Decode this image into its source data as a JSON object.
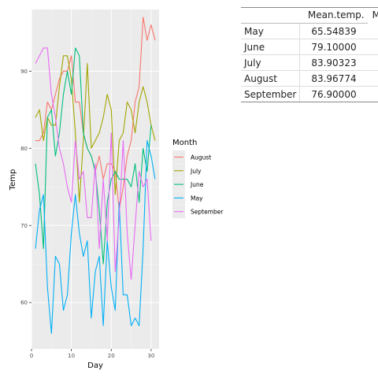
{
  "chart_data": {
    "type": "line",
    "xlabel": "Day",
    "ylabel": "Temp",
    "xlim": [
      0,
      32
    ],
    "ylim": [
      54,
      98
    ],
    "xticks": [
      0,
      10,
      20,
      30
    ],
    "yticks": [
      60,
      70,
      80,
      90
    ],
    "grid": true,
    "legend": {
      "title": "Month",
      "placement": "right"
    },
    "series": [
      {
        "name": "August",
        "color": "#F8766D",
        "x": [
          1,
          2,
          3,
          4,
          5,
          6,
          7,
          8,
          9,
          10,
          11,
          12,
          13,
          14,
          15,
          16,
          17,
          18,
          19,
          20,
          21,
          22,
          23,
          24,
          25,
          26,
          27,
          28,
          29,
          30,
          31
        ],
        "values": [
          81,
          81,
          82,
          86,
          85,
          87,
          89,
          90,
          90,
          92,
          86,
          86,
          82,
          80,
          79,
          77,
          79,
          76,
          78,
          78,
          77,
          72,
          75,
          79,
          81,
          86,
          88,
          97,
          94,
          96,
          94
        ]
      },
      {
        "name": "July",
        "color": "#A3A500",
        "x": [
          1,
          2,
          3,
          4,
          5,
          6,
          7,
          8,
          9,
          10,
          11,
          12,
          13,
          14,
          15,
          16,
          17,
          18,
          19,
          20,
          21,
          22,
          23,
          24,
          25,
          26,
          27,
          28,
          29,
          30,
          31
        ],
        "values": [
          84,
          85,
          81,
          84,
          83,
          83,
          88,
          92,
          92,
          89,
          82,
          73,
          81,
          91,
          80,
          81,
          82,
          84,
          87,
          85,
          74,
          81,
          82,
          86,
          85,
          82,
          86,
          88,
          86,
          83,
          81
        ]
      },
      {
        "name": "June",
        "color": "#00BF7D",
        "x": [
          1,
          2,
          3,
          4,
          5,
          6,
          7,
          8,
          9,
          10,
          11,
          12,
          13,
          14,
          15,
          16,
          17,
          18,
          19,
          20,
          21,
          22,
          23,
          24,
          25,
          26,
          27,
          28,
          29,
          30
        ],
        "values": [
          78,
          74,
          67,
          84,
          85,
          79,
          82,
          87,
          90,
          87,
          93,
          92,
          82,
          80,
          79,
          77,
          72,
          65,
          73,
          76,
          77,
          76,
          76,
          76,
          75,
          78,
          73,
          80,
          77,
          83
        ]
      },
      {
        "name": "May",
        "color": "#00B0F6",
        "x": [
          1,
          2,
          3,
          4,
          5,
          6,
          7,
          8,
          9,
          10,
          11,
          12,
          13,
          14,
          15,
          16,
          17,
          18,
          19,
          20,
          21,
          22,
          23,
          24,
          25,
          26,
          27,
          28,
          29,
          30,
          31
        ],
        "values": [
          67,
          72,
          74,
          62,
          56,
          66,
          65,
          59,
          61,
          69,
          74,
          69,
          66,
          68,
          58,
          64,
          66,
          57,
          68,
          62,
          59,
          73,
          61,
          61,
          57,
          58,
          57,
          67,
          81,
          79,
          76
        ]
      },
      {
        "name": "September",
        "color": "#E76BF3",
        "x": [
          1,
          2,
          3,
          4,
          5,
          6,
          7,
          8,
          9,
          10,
          11,
          12,
          13,
          14,
          15,
          16,
          17,
          18,
          19,
          20,
          21,
          22,
          23,
          24,
          25,
          26,
          27,
          28,
          29,
          30
        ],
        "values": [
          91,
          92,
          93,
          93,
          87,
          84,
          80,
          78,
          75,
          73,
          81,
          76,
          77,
          71,
          71,
          78,
          67,
          76,
          68,
          82,
          64,
          71,
          81,
          69,
          63,
          70,
          77,
          75,
          76,
          68
        ]
      }
    ]
  },
  "summary_table": {
    "columns": [
      "Mean.temp.",
      "Mir"
    ],
    "rows": [
      {
        "month": "May",
        "mean": "65.54839"
      },
      {
        "month": "June",
        "mean": "79.10000"
      },
      {
        "month": "July",
        "mean": "83.90323"
      },
      {
        "month": "August",
        "mean": "83.96774"
      },
      {
        "month": "September",
        "mean": "76.90000"
      }
    ]
  }
}
